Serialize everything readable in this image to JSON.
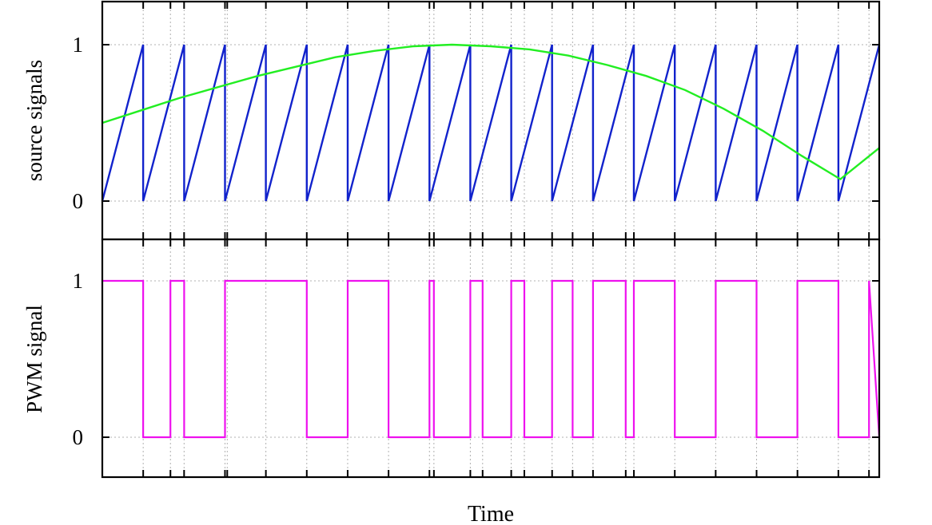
{
  "chart_data": [
    {
      "type": "line",
      "title": "",
      "xlabel": "Time",
      "ylabel": "source signals",
      "yticks": [
        "0",
        "1"
      ],
      "ylim": [
        -0.2,
        1.2
      ],
      "xlim": [
        0,
        1
      ],
      "grid": true,
      "legend": "none",
      "series": [
        {
          "kind": "carrier",
          "color": "#1122cc",
          "shape": "sawtooth",
          "periods": 19,
          "x": [
            0,
            0.0526,
            0.0526,
            0.1053,
            0.1053,
            0.1579,
            0.1579,
            0.2105,
            0.2105,
            0.2632,
            0.2632,
            0.3158,
            0.3158,
            0.3684,
            0.3684,
            0.4211,
            0.4211,
            0.4737,
            0.4737,
            0.5263,
            0.5263,
            0.5789,
            0.5789,
            0.6316,
            0.6316,
            0.6842,
            0.6842,
            0.7368,
            0.7368,
            0.7895,
            0.7895,
            0.8421,
            0.8421,
            0.8947,
            0.8947,
            0.9474,
            0.9474,
            1.0
          ],
          "y": [
            0,
            1,
            0,
            1,
            0,
            1,
            0,
            1,
            0,
            1,
            0,
            1,
            0,
            1,
            0,
            1,
            0,
            1,
            0,
            1,
            0,
            1,
            0,
            1,
            0,
            1,
            0,
            1,
            0,
            1,
            0,
            1,
            0,
            1,
            0,
            1,
            0,
            1
          ]
        },
        {
          "kind": "reference",
          "color": "#22ee22",
          "shape": "sine",
          "x": [
            0,
            0.05,
            0.1,
            0.15,
            0.2,
            0.25,
            0.3,
            0.35,
            0.4,
            0.45,
            0.5,
            0.55,
            0.6,
            0.65,
            0.7,
            0.75,
            0.8,
            0.85,
            0.9,
            0.95,
            1.0
          ],
          "y": [
            0.5,
            0.58,
            0.66,
            0.73,
            0.8,
            0.86,
            0.92,
            0.96,
            0.99,
            1.0,
            0.99,
            0.97,
            0.93,
            0.87,
            0.8,
            0.71,
            0.59,
            0.45,
            0.29,
            0.14,
            0.34
          ]
        }
      ]
    },
    {
      "type": "line",
      "title": "",
      "xlabel": "Time",
      "ylabel": "PWM signal",
      "yticks": [
        "0",
        "1"
      ],
      "ylim": [
        -0.2,
        1.2
      ],
      "xlim": [
        0,
        1
      ],
      "grid": true,
      "legend": "none",
      "series": [
        {
          "kind": "pwm",
          "color": "#ee11ee",
          "shape": "step",
          "x": [
            0,
            0.0526,
            0.0526,
            0.0877,
            0.0877,
            0.1053,
            0.1053,
            0.1579,
            0.1579,
            0.1608,
            0.1608,
            0.2632,
            0.2632,
            0.3158,
            0.3158,
            0.3684,
            0.3684,
            0.4211,
            0.4211,
            0.4268,
            0.4268,
            0.4737,
            0.4737,
            0.4895,
            0.4895,
            0.5263,
            0.5263,
            0.5432,
            0.5432,
            0.5789,
            0.5789,
            0.6053,
            0.6053,
            0.6316,
            0.6316,
            0.6737,
            0.6737,
            0.6842,
            0.6842,
            0.7368,
            0.7368,
            0.7895,
            0.7895,
            0.8421,
            0.8421,
            0.8947,
            0.8947,
            0.9474,
            0.9474,
            0.9868,
            0.9868,
            1.0
          ],
          "y": [
            1,
            1,
            0,
            0,
            1,
            1,
            0,
            0,
            1,
            1,
            1,
            1,
            0,
            0,
            1,
            1,
            0,
            0,
            1,
            1,
            0,
            0,
            1,
            1,
            0,
            0,
            1,
            1,
            0,
            0,
            1,
            1,
            0,
            0,
            1,
            1,
            0,
            0,
            1,
            1,
            0,
            0,
            1,
            1,
            0,
            0,
            1,
            1,
            0,
            0,
            1,
            0
          ]
        }
      ]
    }
  ]
}
